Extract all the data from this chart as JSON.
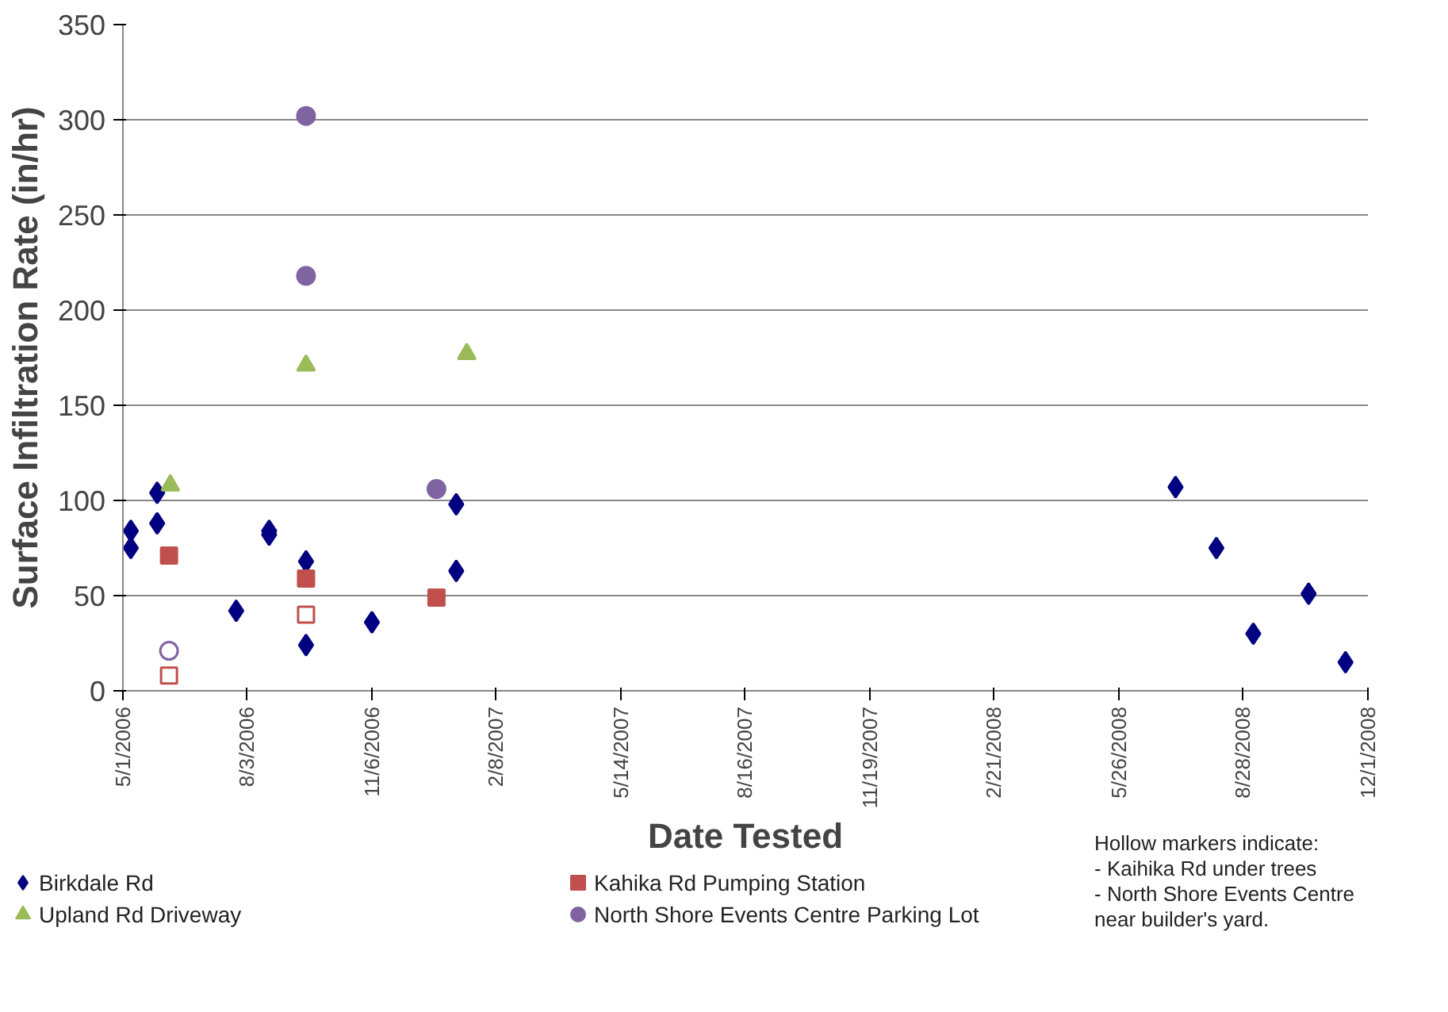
{
  "chart_data": {
    "type": "scatter",
    "xlabel": "Date Tested",
    "ylabel": "Surface Infiltration Rate (in/hr)",
    "xlim": [
      "2006-05-01",
      "2008-12-01"
    ],
    "xticks": [
      {
        "value": "2006-05-01",
        "label": "5/1/2006"
      },
      {
        "value": "2006-08-03",
        "label": "8/3/2006"
      },
      {
        "value": "2006-11-06",
        "label": "11/6/2006"
      },
      {
        "value": "2007-02-08",
        "label": "2/8/2007"
      },
      {
        "value": "2007-05-14",
        "label": "5/14/2007"
      },
      {
        "value": "2007-08-16",
        "label": "8/16/2007"
      },
      {
        "value": "2007-11-19",
        "label": "11/19/2007"
      },
      {
        "value": "2008-02-21",
        "label": "2/21/2008"
      },
      {
        "value": "2008-05-26",
        "label": "5/26/2008"
      },
      {
        "value": "2008-08-28",
        "label": "8/28/2008"
      },
      {
        "value": "2008-12-01",
        "label": "12/1/2008"
      }
    ],
    "ylim": [
      0,
      350
    ],
    "yticks": [
      0,
      50,
      100,
      150,
      200,
      250,
      300,
      350
    ],
    "grid": "y",
    "legend": "bottom",
    "series": [
      {
        "name": "Birkdale Rd",
        "color": "#000080",
        "marker": "diamond",
        "x": [
          "2006-05-07",
          "2006-05-07",
          "2006-05-27",
          "2006-05-27",
          "2006-07-26",
          "2006-08-20",
          "2006-08-20",
          "2006-09-17",
          "2006-09-17",
          "2006-11-06",
          "2007-01-09",
          "2007-01-09",
          "2008-07-08",
          "2008-08-08",
          "2008-09-05",
          "2008-10-17",
          "2008-11-14"
        ],
        "values": [
          84,
          75,
          104,
          88,
          42,
          84,
          82,
          68,
          24,
          36,
          98,
          63,
          107,
          75,
          30,
          51,
          15
        ]
      },
      {
        "name": "Kahika Rd Pumping Station",
        "color": "#c0504d",
        "marker": "square",
        "x": [
          "2006-06-05",
          "2006-09-17",
          "2006-12-25"
        ],
        "values": [
          71,
          59,
          49
        ]
      },
      {
        "name": "Upland Rd Driveway",
        "color": "#9bbb59",
        "marker": "triangle",
        "x": [
          "2006-06-06",
          "2006-09-17",
          "2007-01-17"
        ],
        "values": [
          108,
          171,
          177
        ]
      },
      {
        "name": "North Shore Events Centre Parking Lot",
        "color": "#8064a2",
        "marker": "circle",
        "x": [
          "2006-09-17",
          "2006-09-17",
          "2006-12-25"
        ],
        "values": [
          302,
          218,
          106
        ]
      },
      {
        "color": "#c0504d",
        "marker": "square",
        "x": [
          "2006-06-05",
          "2006-09-17"
        ],
        "values": [
          8,
          40
        ]
      },
      {
        "color": "#8064a2",
        "marker": "circle",
        "x": [
          "2006-06-05"
        ],
        "values": [
          21
        ]
      }
    ],
    "annotations": [
      "Hollow markers indicate:",
      "- Kaihika Rd under trees",
      "- North Shore Events Centre",
      "near builder's yard."
    ]
  }
}
